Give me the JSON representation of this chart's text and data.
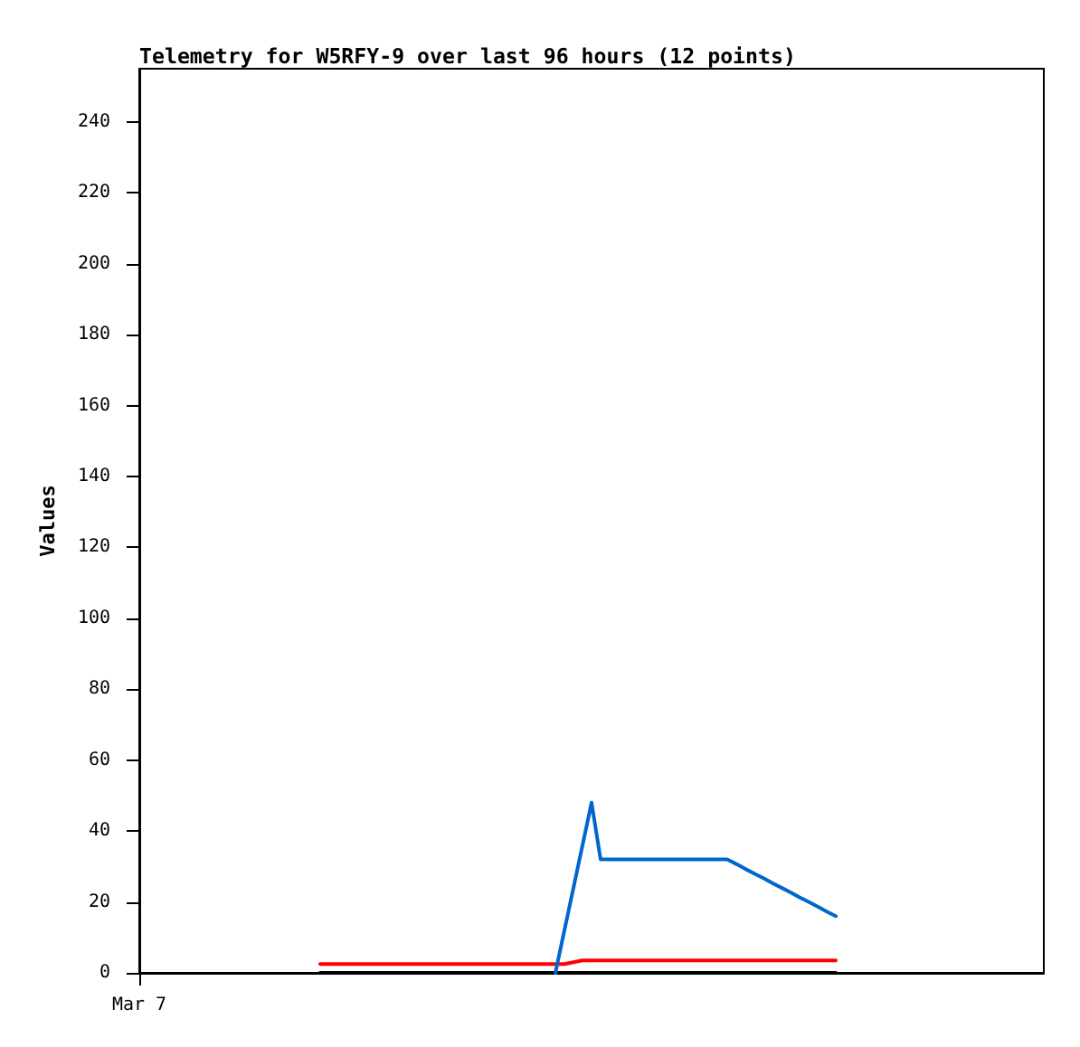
{
  "chart_data": {
    "type": "line",
    "title": "Telemetry for W5RFY-9 over last 96 hours (12 points)",
    "ylabel": "Values",
    "categories": [
      "Mar 7",
      null,
      null,
      null,
      null,
      null,
      null,
      null,
      null,
      null,
      null,
      null,
      null,
      null,
      null,
      null,
      null,
      null,
      null,
      null,
      null,
      null,
      null,
      null,
      null,
      null,
      null,
      null,
      null,
      null,
      null,
      null,
      null,
      null,
      null,
      null,
      null,
      null,
      null,
      null,
      null,
      null,
      null,
      null,
      null,
      null,
      null,
      null,
      null,
      null,
      null,
      null,
      null,
      null,
      null,
      null,
      null,
      null,
      null,
      null,
      null,
      null,
      null,
      null,
      null,
      null,
      null,
      null,
      null,
      null,
      null,
      null,
      null,
      null,
      null,
      null,
      null,
      null,
      null,
      null,
      null,
      null,
      null,
      null,
      null,
      null,
      null,
      null,
      null,
      null,
      null,
      null,
      null,
      null,
      null,
      null,
      null,
      null,
      null,
      null,
      null
    ],
    "ylim": [
      0,
      255
    ],
    "yticks": [
      0,
      20,
      40,
      60,
      80,
      100,
      120,
      140,
      160,
      180,
      200,
      220,
      240
    ],
    "grid": false,
    "marker": "none",
    "line_style": "solid",
    "series": [
      {
        "color": "#000000",
        "values": [
          null,
          null,
          null,
          null,
          null,
          null,
          null,
          null,
          null,
          null,
          null,
          null,
          null,
          null,
          null,
          null,
          null,
          null,
          null,
          null,
          0,
          0,
          0,
          0,
          0,
          0,
          0,
          0,
          0,
          0,
          0,
          0,
          0,
          0,
          0,
          0,
          0,
          0,
          0,
          0,
          0,
          0,
          0,
          0,
          0,
          0,
          0,
          0,
          0,
          0,
          0,
          0,
          0,
          0,
          0,
          0,
          0,
          0,
          0,
          0,
          0,
          0,
          0,
          0,
          0,
          0,
          0,
          0,
          0,
          0,
          0,
          0,
          0,
          0,
          0,
          0,
          0,
          0,
          null,
          null,
          null,
          null,
          null,
          null,
          null,
          null,
          null,
          null,
          null,
          null,
          null,
          null,
          null,
          null,
          null,
          null,
          null,
          null,
          null,
          null,
          null
        ]
      },
      {
        "color": "#ff0000",
        "values": [
          null,
          null,
          null,
          null,
          null,
          null,
          null,
          null,
          null,
          null,
          null,
          null,
          null,
          null,
          null,
          null,
          null,
          null,
          null,
          null,
          2.5,
          2.5,
          2.5,
          2.5,
          2.5,
          2.5,
          2.5,
          2.5,
          2.5,
          2.5,
          2.5,
          2.5,
          2.5,
          2.5,
          2.5,
          2.5,
          2.5,
          2.5,
          2.5,
          2.5,
          2.5,
          2.5,
          2.5,
          2.5,
          2.5,
          2.5,
          2.5,
          2.5,
          3,
          3.5,
          3.5,
          3.5,
          3.5,
          3.5,
          3.5,
          3.5,
          3.5,
          3.5,
          3.5,
          3.5,
          3.5,
          3.5,
          3.5,
          3.5,
          3.5,
          3.5,
          3.5,
          3.5,
          3.5,
          3.5,
          3.5,
          3.5,
          3.5,
          3.5,
          3.5,
          3.5,
          3.5,
          3.5,
          null,
          null,
          null,
          null,
          null,
          null,
          null,
          null,
          null,
          null,
          null,
          null,
          null,
          null,
          null,
          null,
          null,
          null,
          null,
          null,
          null,
          null,
          null
        ]
      },
      {
        "color": "#0066cc",
        "values": [
          null,
          null,
          null,
          null,
          null,
          null,
          null,
          null,
          null,
          null,
          null,
          null,
          null,
          null,
          null,
          null,
          null,
          null,
          null,
          null,
          null,
          null,
          null,
          null,
          null,
          null,
          null,
          null,
          null,
          null,
          null,
          null,
          null,
          null,
          null,
          null,
          null,
          null,
          null,
          null,
          null,
          null,
          null,
          null,
          null,
          null,
          0,
          12,
          24,
          36,
          48,
          32,
          32,
          32,
          32,
          32,
          32,
          32,
          32,
          32,
          32,
          32,
          32,
          32,
          32,
          32,
          30.7,
          29.3,
          28,
          26.7,
          25.3,
          24,
          22.7,
          21.3,
          20,
          18.7,
          17.3,
          16,
          null,
          null,
          null,
          null,
          null,
          null,
          null,
          null,
          null,
          null,
          null,
          null,
          null,
          null,
          null,
          null,
          null,
          null,
          null,
          null,
          null,
          null,
          null
        ]
      }
    ]
  }
}
